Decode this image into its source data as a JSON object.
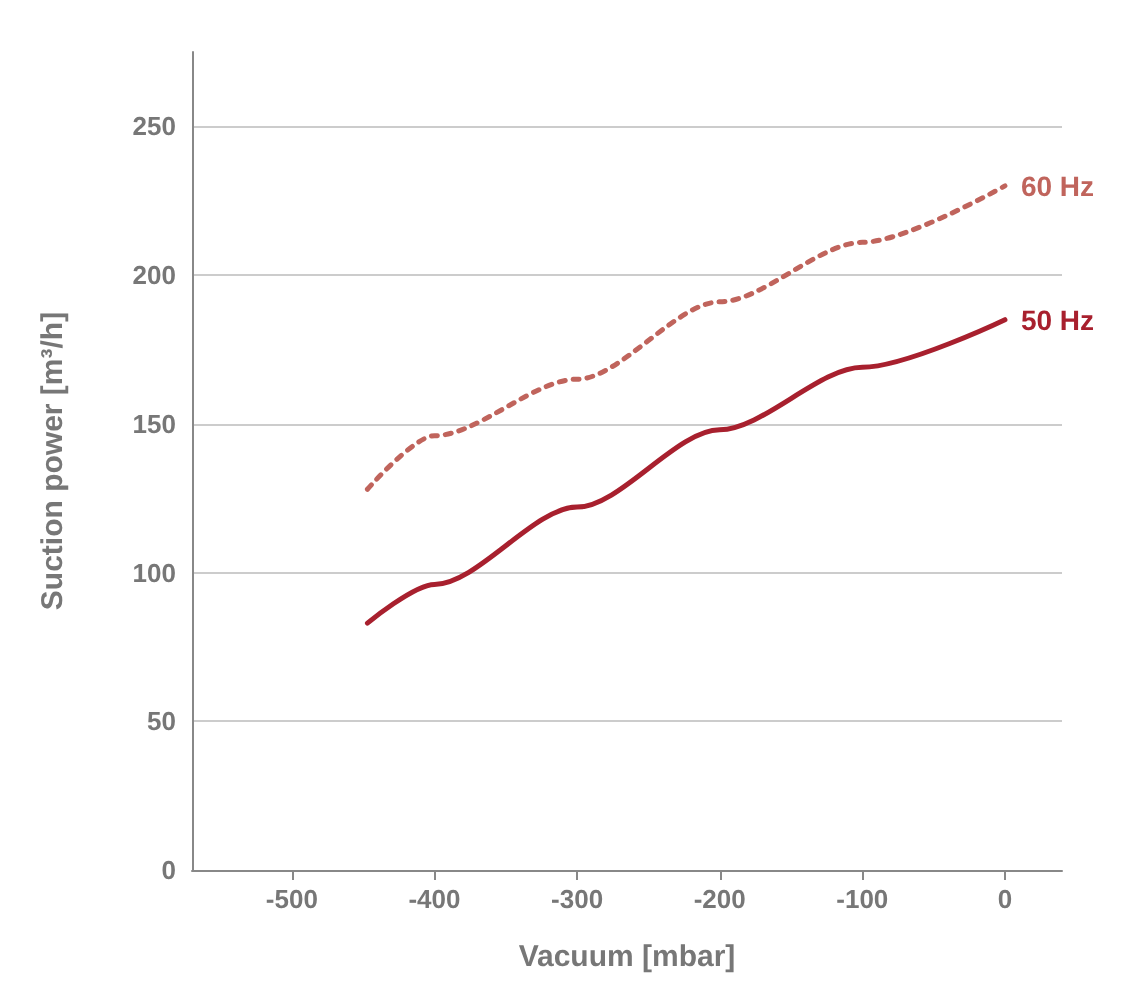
{
  "chart_data": {
    "type": "line",
    "xlabel": "Vacuum [mbar]",
    "ylabel": "Suction power [m³/h]",
    "xlim": [
      -570,
      40
    ],
    "xticks": [
      -500,
      -400,
      -300,
      -200,
      -100,
      0
    ],
    "ylim": [
      0,
      275
    ],
    "yticks": [
      0,
      50,
      100,
      150,
      200,
      250
    ],
    "grid": "y",
    "legend": false,
    "marker": "none",
    "series": [
      {
        "name": "60 Hz",
        "color": "#c0645c",
        "line_style": "dotted",
        "x": [
          -447,
          -400,
          -300,
          -200,
          -100,
          0
        ],
        "values": [
          128,
          146,
          165,
          191,
          211,
          230
        ]
      },
      {
        "name": "50 Hz",
        "color": "#a8202e",
        "line_style": "solid",
        "x": [
          -447,
          -400,
          -300,
          -200,
          -100,
          0
        ],
        "values": [
          83,
          96,
          122,
          148,
          169,
          185
        ]
      }
    ]
  }
}
